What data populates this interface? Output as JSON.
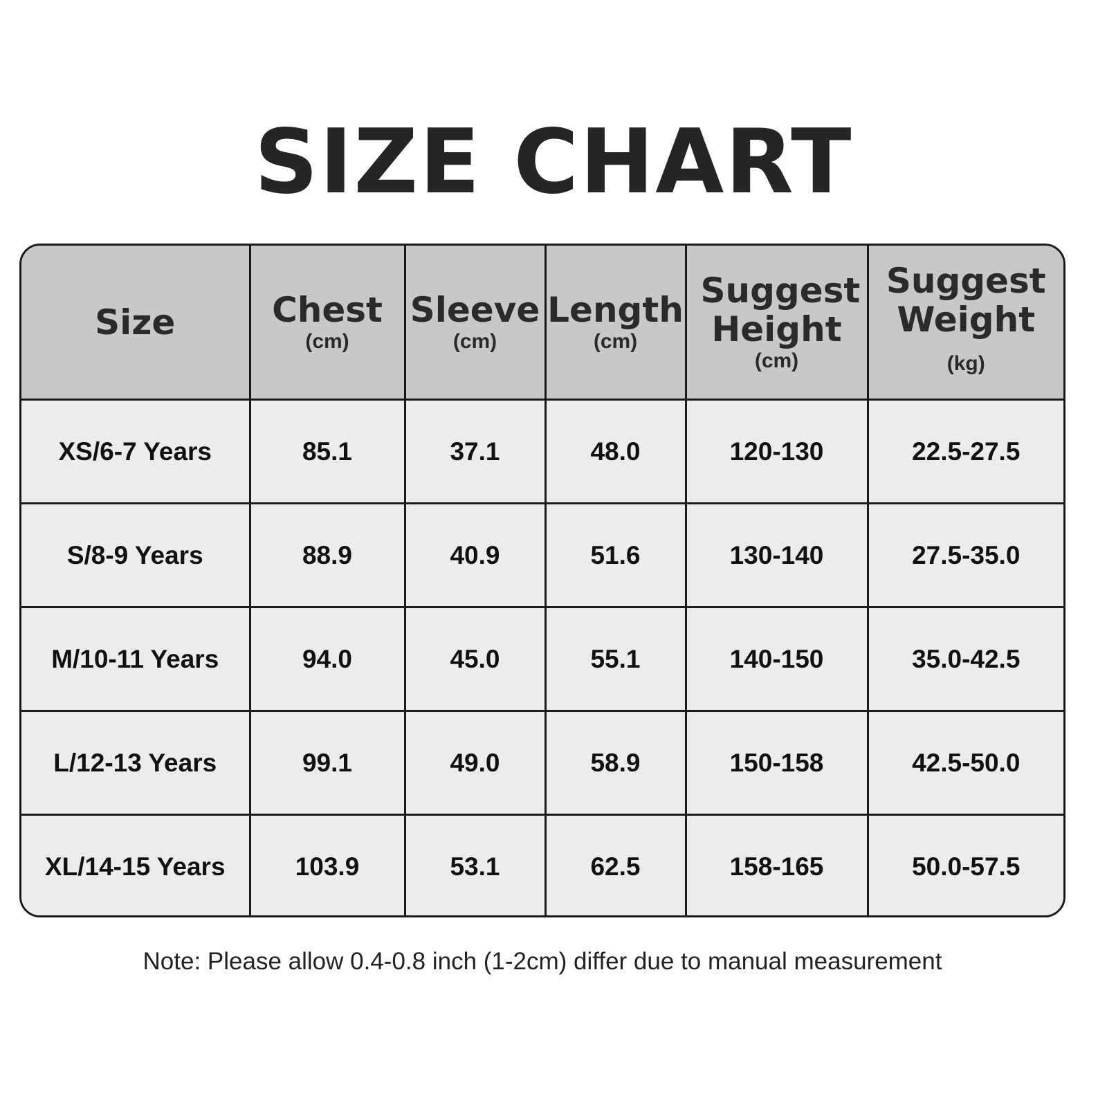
{
  "title": "SIZE CHART",
  "chart_data": {
    "type": "table",
    "columns": [
      {
        "label": "Size",
        "unit": ""
      },
      {
        "label": "Chest",
        "unit": "(cm)"
      },
      {
        "label": "Sleeve",
        "unit": "(cm)"
      },
      {
        "label": "Length",
        "unit": "(cm)"
      },
      {
        "label": "Suggest Height",
        "unit": "(cm)"
      },
      {
        "label": "Suggest Weight",
        "unit": "(kg)"
      }
    ],
    "rows": [
      [
        "XS/6-7 Years",
        "85.1",
        "37.1",
        "48.0",
        "120-130",
        "22.5-27.5"
      ],
      [
        "S/8-9 Years",
        "88.9",
        "40.9",
        "51.6",
        "130-140",
        "27.5-35.0"
      ],
      [
        "M/10-11 Years",
        "94.0",
        "45.0",
        "55.1",
        "140-150",
        "35.0-42.5"
      ],
      [
        "L/12-13 Years",
        "99.1",
        "49.0",
        "58.9",
        "150-158",
        "42.5-50.0"
      ],
      [
        "XL/14-15 Years",
        "103.9",
        "53.1",
        "62.5",
        "158-165",
        "50.0-57.5"
      ]
    ],
    "colors": {
      "header_bg": "#c8c8c8",
      "cell_bg": "#ececec",
      "border": "#1a1a1a"
    }
  },
  "note": "Note: Please allow 0.4-0.8 inch (1-2cm) differ due to manual measurement"
}
